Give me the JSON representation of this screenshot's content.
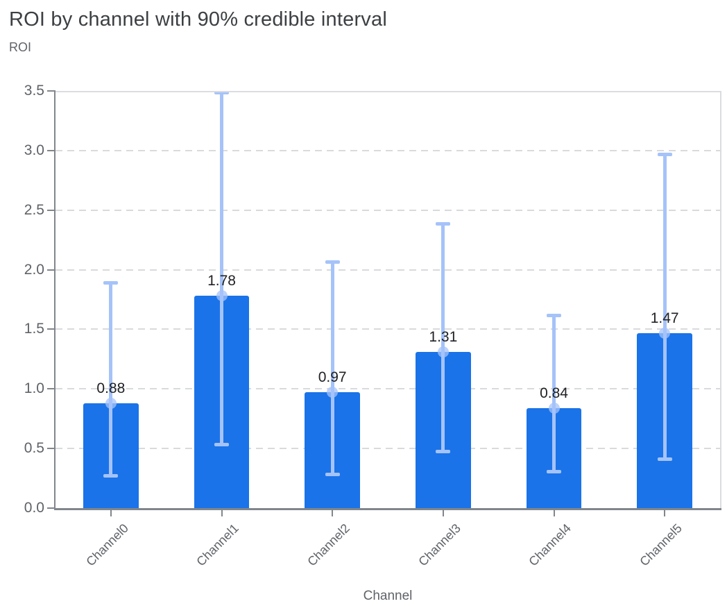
{
  "chart_data": {
    "type": "bar",
    "title": "ROI by channel with 90% credible interval",
    "ylabel": "ROI",
    "xlabel": "Channel",
    "categories": [
      "Channel0",
      "Channel1",
      "Channel2",
      "Channel3",
      "Channel4",
      "Channel5"
    ],
    "values": [
      0.88,
      1.78,
      0.97,
      1.31,
      0.84,
      1.47
    ],
    "bar_labels": [
      "0.88",
      "1.78",
      "0.97",
      "1.31",
      "0.84",
      "1.47"
    ],
    "error_bars": {
      "kind": "90% credible interval",
      "lower": [
        0.27,
        0.53,
        0.28,
        0.47,
        0.3,
        0.41
      ],
      "upper": [
        1.89,
        3.49,
        2.07,
        2.39,
        1.62,
        2.97
      ]
    },
    "ylim": [
      0,
      3.5
    ],
    "ytick_step": 0.5,
    "yticks": [
      "0.0",
      "0.5",
      "1.0",
      "1.5",
      "2.0",
      "2.5",
      "3.0",
      "3.5"
    ],
    "grid": "horizontal-dashed",
    "legend": "none",
    "bar_width_fraction": 0.5,
    "colors": {
      "bar": "#1a73e8",
      "error_bar": "#a5c3f9",
      "marker": "#a5c3f9",
      "title_text": "#3c4043",
      "axis_title_text": "#5f6368",
      "tick_text": "#5f6368",
      "value_label_text": "#202124",
      "axis_line": "#80868b",
      "gridline": "#d9dadc",
      "plot_border": "#dadce0"
    }
  }
}
